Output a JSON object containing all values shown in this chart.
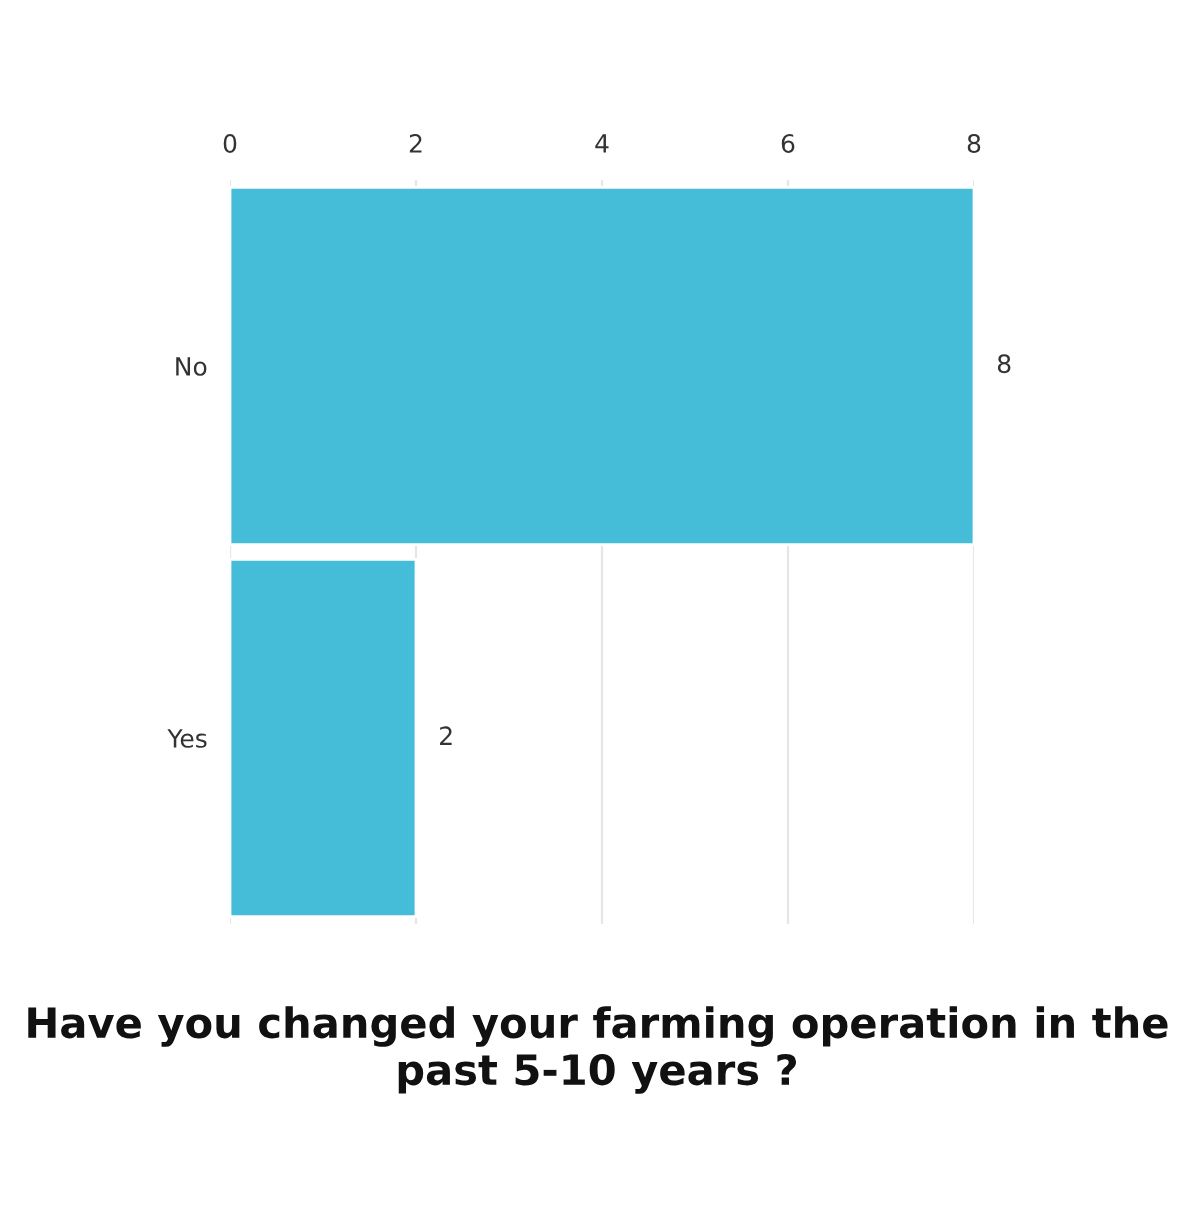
{
  "chart_data": {
    "type": "bar",
    "orientation": "horizontal",
    "title": "Have you changed your farming operation in the past 5-10 years ?",
    "categories": [
      "No",
      "Yes"
    ],
    "values": [
      8,
      2
    ],
    "color": "#45bcd8",
    "xlim": [
      0,
      8
    ],
    "xticks": [
      0,
      2,
      4,
      6,
      8
    ],
    "grid": "x",
    "data_labels": true
  }
}
